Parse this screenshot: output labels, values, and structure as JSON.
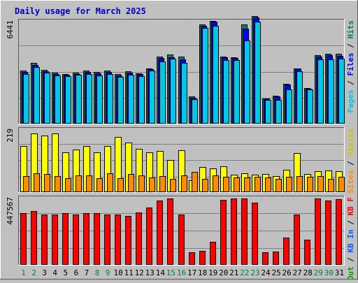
{
  "chart_data": {
    "type": "bar",
    "title": "Daily usage for March 2025",
    "days": [
      "1",
      "2",
      "3",
      "4",
      "5",
      "6",
      "7",
      "8",
      "9",
      "10",
      "11",
      "12",
      "13",
      "14",
      "15",
      "16",
      "17",
      "18",
      "19",
      "20",
      "21",
      "22",
      "23",
      "24",
      "25",
      "26",
      "27",
      "28",
      "29",
      "30",
      "31"
    ],
    "weekend_days": [
      "1",
      "2",
      "8",
      "9",
      "15",
      "16",
      "22",
      "23",
      "29",
      "30"
    ],
    "panels": [
      {
        "id": "hits_files_pages",
        "ymax": 6441,
        "ymax_label": "6441",
        "legend": [
          "Hits",
          "Files",
          "Pages"
        ],
        "series": [
          {
            "name": "Hits",
            "values": [
              3280,
              3760,
              3310,
              3140,
              3090,
              3150,
              3300,
              3180,
              3290,
              3050,
              3260,
              3120,
              3420,
              4150,
              4260,
              4150,
              1670,
              6120,
              6370,
              4170,
              4120,
              6130,
              6660,
              1570,
              1730,
              2470,
              3430,
              2220,
              4250,
              4340,
              4340
            ]
          },
          {
            "name": "Files",
            "values": [
              3220,
              3620,
              3230,
              3090,
              3020,
              3070,
              3200,
              3130,
              3210,
              3000,
              3160,
              3080,
              3370,
              4050,
              4120,
              3980,
              1600,
              6060,
              6300,
              4110,
              4050,
              5900,
              6580,
              1540,
              1680,
              2400,
              3400,
              2180,
              4150,
              4220,
              4200
            ]
          },
          {
            "name": "Pages",
            "values": [
              3090,
              3500,
              3170,
              2990,
              2920,
              3020,
              3060,
              3000,
              3050,
              2890,
              3030,
              2950,
              3300,
              3860,
              4000,
              3780,
              1530,
              5940,
              6070,
              3920,
              3940,
              5140,
              6300,
              1470,
              1490,
              2130,
              3250,
              2100,
              3990,
              3960,
              4010
            ]
          }
        ]
      },
      {
        "id": "visits_sites",
        "ymax": 219,
        "ymax_label": "219",
        "legend": [
          "Visits",
          "Sites"
        ],
        "series": [
          {
            "name": "Visits",
            "values": [
              158,
              199,
              193,
              200,
              136,
              145,
              158,
              135,
              156,
              189,
              168,
              148,
              135,
              140,
              109,
              143,
              41,
              85,
              82,
              87,
              59,
              64,
              59,
              63,
              54,
              76,
              134,
              63,
              72,
              73,
              71
            ]
          },
          {
            "name": "Sites",
            "values": [
              54,
              64,
              62,
              55,
              47,
              58,
              56,
              48,
              65,
              48,
              61,
              57,
              51,
              55,
              45,
              56,
              70,
              45,
              58,
              53,
              50,
              50,
              52,
              50,
              46,
              53,
              54,
              53,
              54,
              45,
              53
            ]
          }
        ]
      },
      {
        "id": "kbytes",
        "ymax": 447567,
        "ymax_label": "447567",
        "legend": [
          "KB F",
          "KB In",
          "KB Out"
        ],
        "series": [
          {
            "name": "KB F",
            "values": [
              338000,
              350000,
              329000,
              329000,
              336000,
              331000,
              338000,
              336000,
              329000,
              329000,
              321000,
              343000,
              373000,
              419000,
              433000,
              331000,
              81000,
              93000,
              151000,
              425000,
              432000,
              433000,
              406000,
              83000,
              86000,
              176000,
              331000,
              163000,
              435000,
              420000,
              428000
            ]
          }
        ]
      }
    ]
  }
}
